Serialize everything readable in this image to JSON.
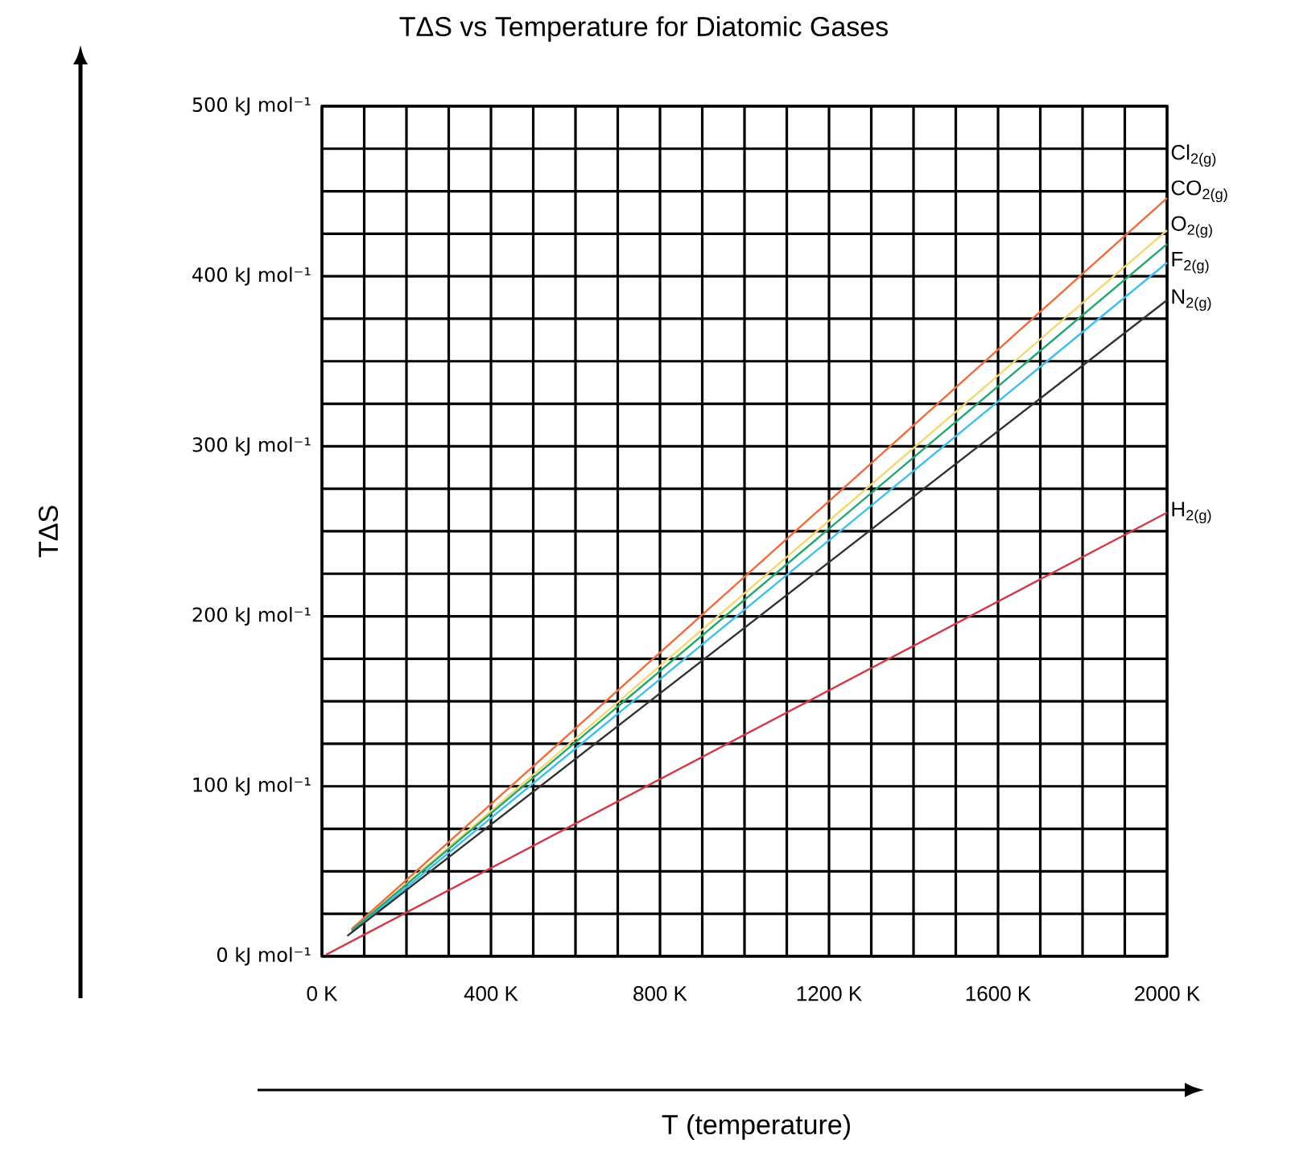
{
  "chart_data": {
    "type": "line",
    "title": "TΔS vs Temperature for Diatomic Gases",
    "xlabel": "T (temperature)",
    "ylabel": "TΔS",
    "xlim": [
      0,
      2000
    ],
    "ylim": [
      0,
      500
    ],
    "xticks": [
      {
        "value": 0,
        "label": "0 K"
      },
      {
        "value": 100,
        "label": null
      },
      {
        "value": 200,
        "label": null
      },
      {
        "value": 300,
        "label": null
      },
      {
        "value": 400,
        "label": "400 K"
      },
      {
        "value": 500,
        "label": null
      },
      {
        "value": 600,
        "label": null
      },
      {
        "value": 700,
        "label": null
      },
      {
        "value": 800,
        "label": "800 K"
      },
      {
        "value": 900,
        "label": null
      },
      {
        "value": 1000,
        "label": null
      },
      {
        "value": 1100,
        "label": null
      },
      {
        "value": 1200,
        "label": "1200 K"
      },
      {
        "value": 1300,
        "label": null
      },
      {
        "value": 1400,
        "label": null
      },
      {
        "value": 1500,
        "label": null
      },
      {
        "value": 1600,
        "label": "1600 K"
      },
      {
        "value": 1700,
        "label": null
      },
      {
        "value": 1800,
        "label": null
      },
      {
        "value": 1900,
        "label": null
      },
      {
        "value": 2000,
        "label": "2000 K"
      }
    ],
    "yticks": [
      {
        "value": 0,
        "label": "0 kJ mol⁻¹"
      },
      {
        "value": 25,
        "label": null
      },
      {
        "value": 50,
        "label": null
      },
      {
        "value": 75,
        "label": null
      },
      {
        "value": 100,
        "label": "100 kJ mol⁻¹"
      },
      {
        "value": 125,
        "label": null
      },
      {
        "value": 150,
        "label": null
      },
      {
        "value": 175,
        "label": null
      },
      {
        "value": 200,
        "label": "200 kJ mol⁻¹"
      },
      {
        "value": 225,
        "label": null
      },
      {
        "value": 250,
        "label": null
      },
      {
        "value": 275,
        "label": null
      },
      {
        "value": 300,
        "label": "300 kJ mol⁻¹"
      },
      {
        "value": 325,
        "label": null
      },
      {
        "value": 350,
        "label": null
      },
      {
        "value": 375,
        "label": null
      },
      {
        "value": 400,
        "label": "400 kJ mol⁻¹"
      },
      {
        "value": 425,
        "label": null
      },
      {
        "value": 450,
        "label": null
      },
      {
        "value": 475,
        "label": null
      },
      {
        "value": 500,
        "label": "500 kJ mol⁻¹"
      }
    ],
    "grid": true,
    "legend": false,
    "marker": "none",
    "line_style": "solid",
    "series": [
      {
        "name": "Cl$_{2(g)}$",
        "color": "#f26b3a",
        "x": [
          70,
          2000
        ],
        "values": [
          16,
          446
        ]
      },
      {
        "name": "CO$_{2(g)}$",
        "color": "#f5d76e",
        "x": [
          70,
          2000
        ],
        "values": [
          15,
          427
        ]
      },
      {
        "name": "O$_{2(g)}$",
        "color": "#1fa86b",
        "x": [
          70,
          2000
        ],
        "values": [
          15,
          419
        ]
      },
      {
        "name": "F$_{2(g)}$",
        "color": "#3cbfef",
        "x": [
          70,
          2000
        ],
        "values": [
          14,
          408
        ]
      },
      {
        "name": "N$_{2(g)}$",
        "color": "#333333",
        "x": [
          60,
          2000
        ],
        "values": [
          12,
          386
        ]
      },
      {
        "name": "H$_{2(g)}$",
        "color": "#d03a4a",
        "x": [
          10,
          2000
        ],
        "values": [
          1,
          261
        ]
      }
    ]
  }
}
